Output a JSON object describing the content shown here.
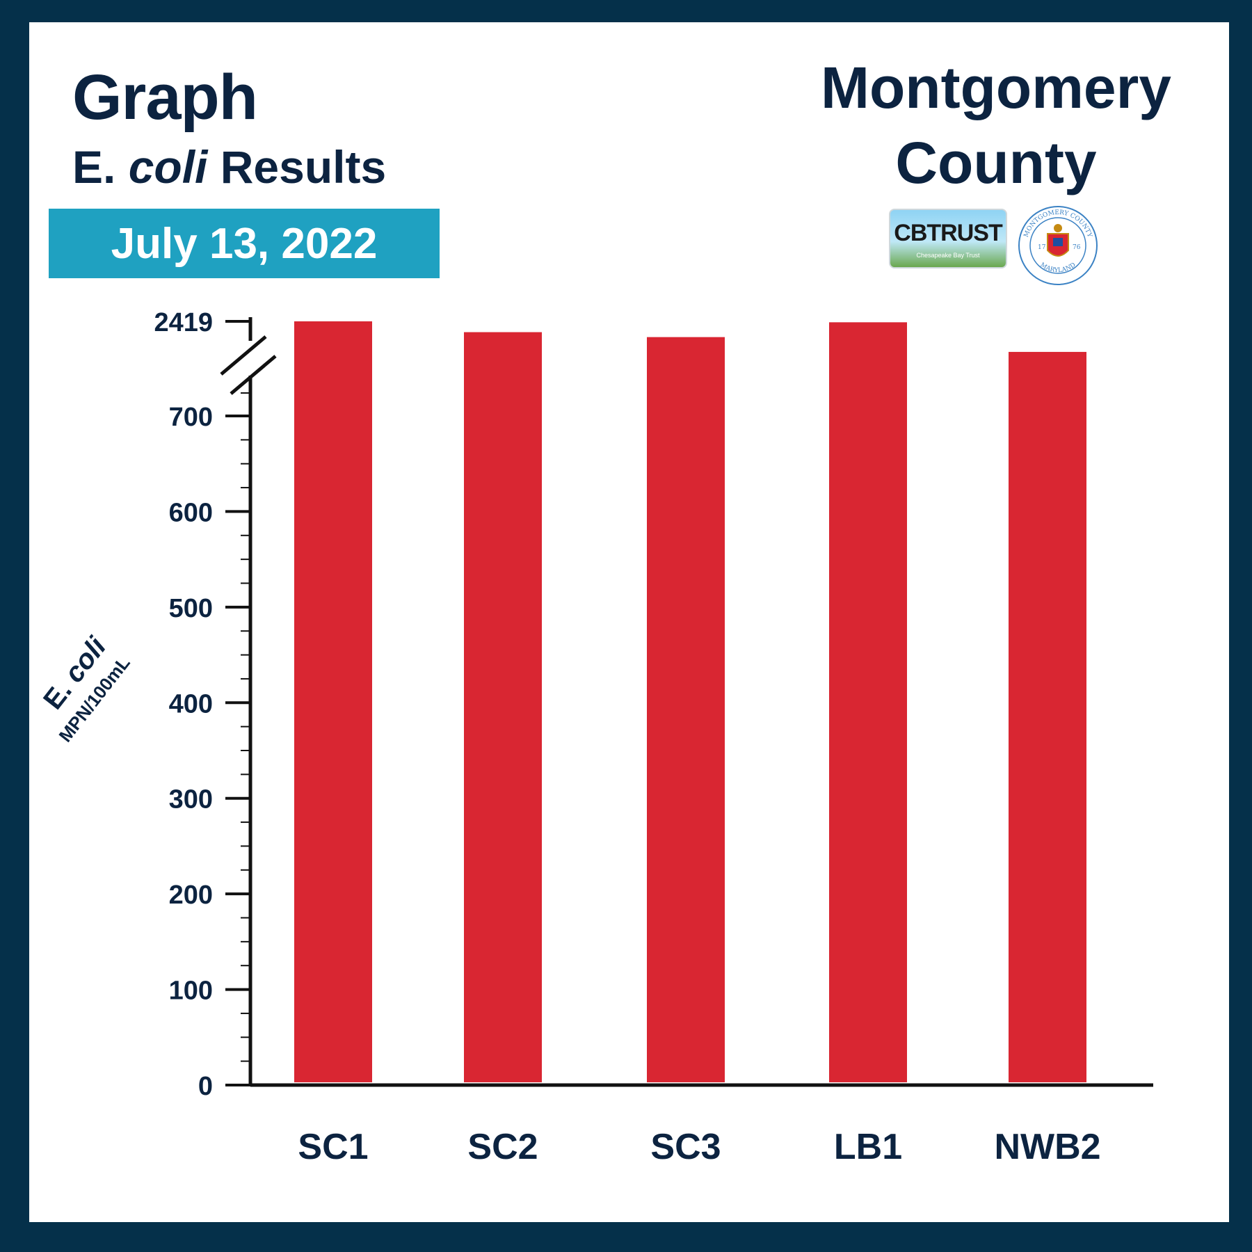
{
  "header": {
    "graph_label": "Graph",
    "subtitle_prefix": "E.",
    "subtitle_italic": "coli",
    "subtitle_suffix": "Results",
    "date": "July 13, 2022",
    "county_line1": "Montgomery",
    "county_line2": "County"
  },
  "logos": {
    "cbtrust_text": "CBTRUST",
    "cbtrust_tagline": "Chesapeake Bay Trust",
    "seal_top": "MONTGOMERY COUNTY",
    "seal_bottom": "MARYLAND",
    "seal_year_left": "17",
    "seal_year_right": "76"
  },
  "colors": {
    "frame": "#05304a",
    "bar": "#d92632",
    "text": "#0c2340",
    "date_bg": "#1fa1c1"
  },
  "chart_data": {
    "type": "bar",
    "categories": [
      "SC1",
      "SC2",
      "SC3",
      "LB1",
      "NWB2"
    ],
    "values": [
      2419,
      2200,
      2100,
      2400,
      1800
    ],
    "ylabel": "E. coli",
    "ylabel_prefix": "E.",
    "ylabel_italic": "coli",
    "ylabel_units": "MPN/100mL",
    "yticks": [
      "0",
      "100",
      "200",
      "300",
      "400",
      "500",
      "600",
      "700",
      "2419"
    ],
    "ylim": [
      0,
      2419
    ],
    "axis_break": true,
    "grid": false
  }
}
